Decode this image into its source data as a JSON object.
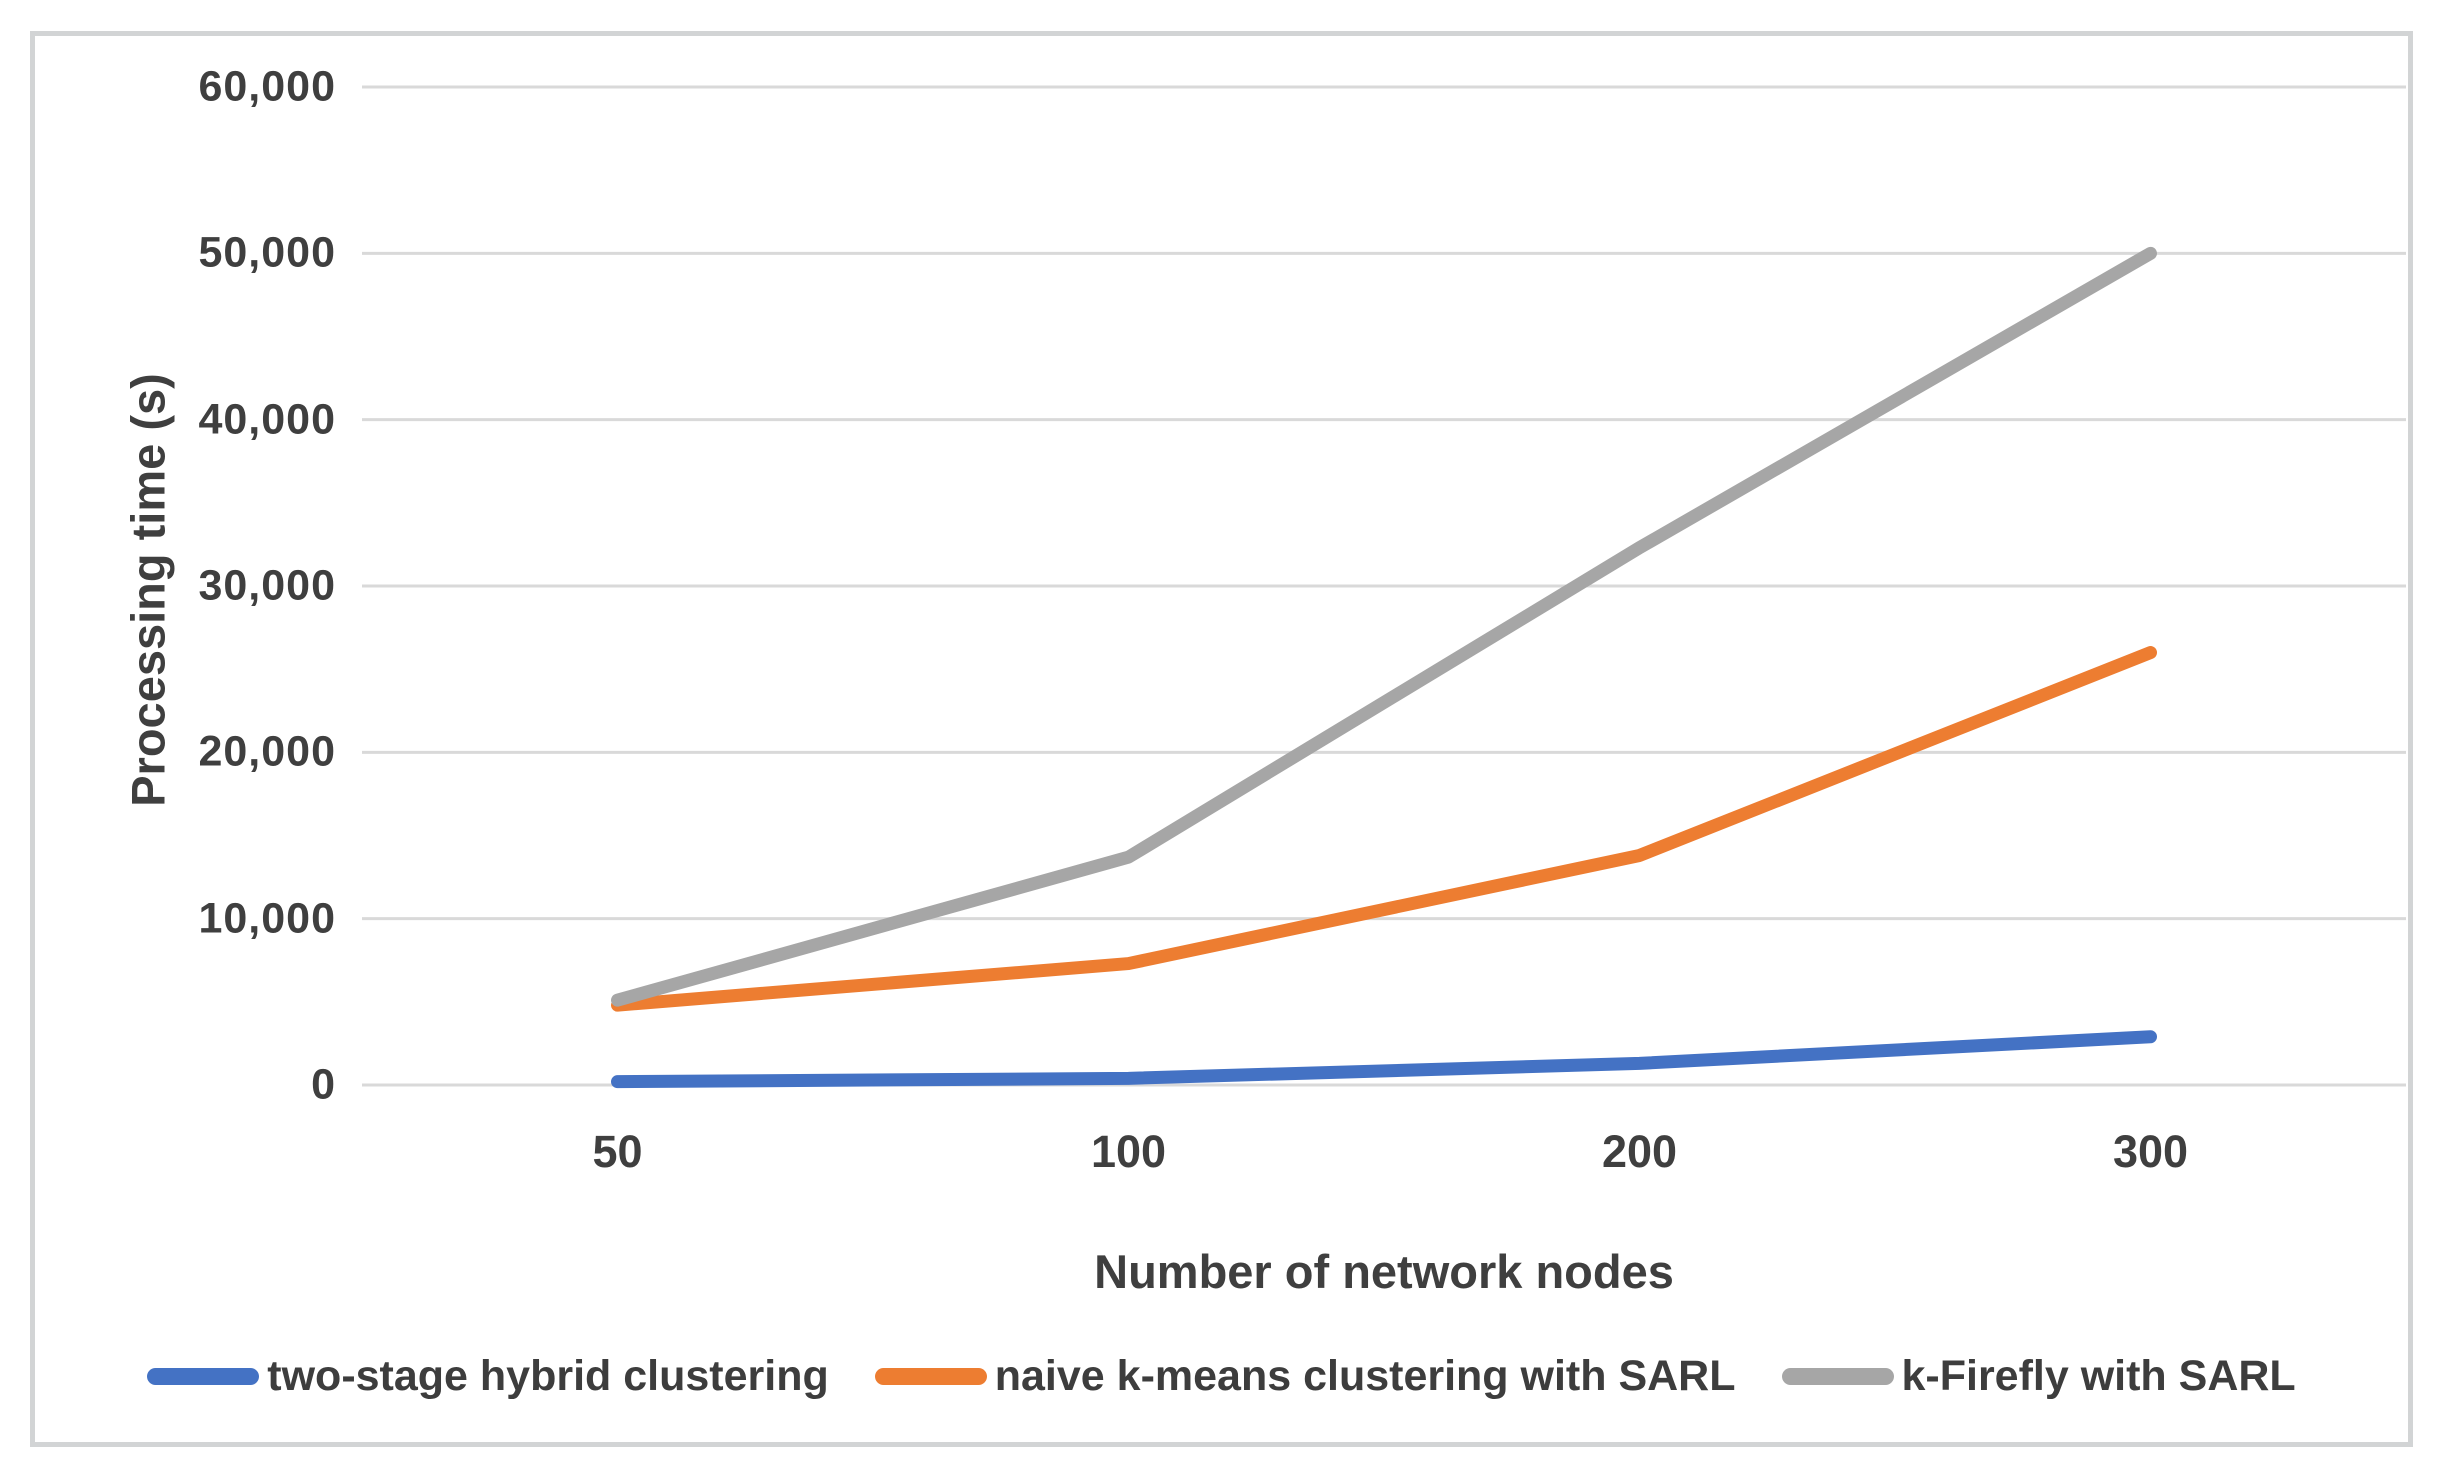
{
  "chart_data": {
    "type": "line",
    "title": "",
    "xlabel": "Number of network nodes",
    "ylabel": "Processing time (s)",
    "categories": [
      "50",
      "100",
      "200",
      "300"
    ],
    "series": [
      {
        "name": "two-stage hybrid clustering",
        "color": "#4472C4",
        "values": [
          200,
          400,
          1300,
          2900
        ]
      },
      {
        "name": "naive k-means clustering with SARL",
        "color": "#ED7D31",
        "values": [
          4800,
          7300,
          13800,
          26000
        ]
      },
      {
        "name": "k-Firefly with SARL",
        "color": "#A6A6A6",
        "values": [
          5100,
          13700,
          32300,
          50000
        ]
      }
    ],
    "ylim": [
      0,
      60000
    ],
    "ytick_values": [
      0,
      10000,
      20000,
      30000,
      40000,
      50000,
      60000
    ],
    "ytick_labels": [
      "0",
      "10,000",
      "20,000",
      "30,000",
      "40,000",
      "50,000",
      "60,000"
    ],
    "grid": true,
    "legend_position": "bottom",
    "colors": {
      "grid": "#D9D9D9",
      "text": "#3F3F3F",
      "frame": "#D2D4D5"
    }
  }
}
